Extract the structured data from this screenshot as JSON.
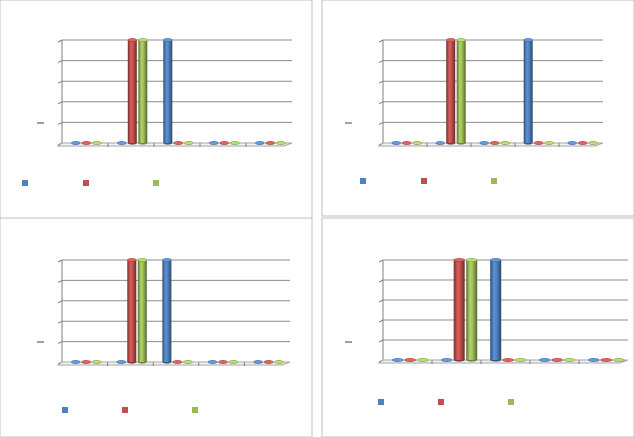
{
  "chart_data": [
    {
      "type": "bar",
      "categories": [
        null,
        null,
        null,
        null,
        null
      ],
      "series": [
        {
          "color": "#4f81bd",
          "values": [
            0,
            0,
            5,
            0,
            0
          ]
        },
        {
          "color": "#c0504d",
          "values": [
            0,
            5,
            0,
            0,
            0
          ]
        },
        {
          "color": "#9bbb59",
          "values": [
            0,
            5,
            0,
            0,
            0
          ]
        }
      ],
      "ylim": [
        0,
        5
      ],
      "yticks": [
        0,
        1,
        2,
        3,
        4,
        5
      ],
      "grid": true
    },
    {
      "type": "bar",
      "categories": [
        null,
        null,
        null,
        null,
        null
      ],
      "series": [
        {
          "color": "#4f81bd",
          "values": [
            0,
            0,
            0,
            5,
            0
          ]
        },
        {
          "color": "#c0504d",
          "values": [
            0,
            5,
            0,
            0,
            0
          ]
        },
        {
          "color": "#9bbb59",
          "values": [
            0,
            5,
            0,
            0,
            0
          ]
        }
      ],
      "ylim": [
        0,
        5
      ],
      "yticks": [
        0,
        1,
        2,
        3,
        4,
        5
      ],
      "grid": true
    },
    {
      "type": "bar",
      "categories": [
        null,
        null,
        null,
        null,
        null
      ],
      "series": [
        {
          "color": "#4f81bd",
          "values": [
            0,
            0,
            5,
            0,
            0
          ]
        },
        {
          "color": "#c0504d",
          "values": [
            0,
            5,
            0,
            0,
            0
          ]
        },
        {
          "color": "#9bbb59",
          "values": [
            0,
            5,
            0,
            0,
            0
          ]
        }
      ],
      "ylim": [
        0,
        5
      ],
      "yticks": [
        0,
        1,
        2,
        3,
        4,
        5
      ],
      "grid": true
    },
    {
      "type": "bar",
      "categories": [
        null,
        null,
        null,
        null,
        null
      ],
      "series": [
        {
          "color": "#4f81bd",
          "values": [
            0,
            0,
            5,
            0,
            0
          ]
        },
        {
          "color": "#c0504d",
          "values": [
            0,
            5,
            0,
            0,
            0
          ]
        },
        {
          "color": "#9bbb59",
          "values": [
            0,
            5,
            0,
            0,
            0
          ]
        }
      ],
      "ylim": [
        0,
        5
      ],
      "yticks": [
        0,
        1,
        2,
        3,
        4,
        5
      ],
      "grid": true
    }
  ]
}
